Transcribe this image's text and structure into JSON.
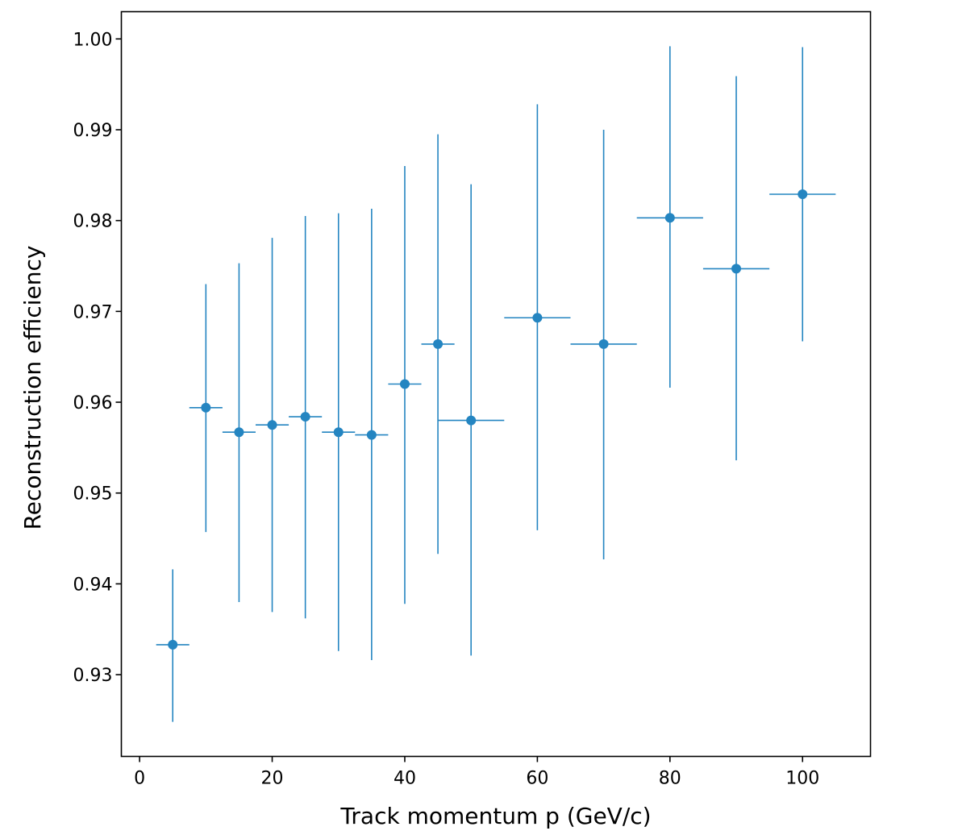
{
  "colors": {
    "series": "#2485c1",
    "axis": "#000000",
    "background": "#ffffff"
  },
  "chart_data": {
    "type": "scatter",
    "title": "",
    "xlabel": "Track momentum p (GeV/c)",
    "ylabel": "Reconstruction efficiency",
    "xlim": [
      -2.75,
      110.25
    ],
    "ylim": [
      0.921,
      1.003
    ],
    "xticks": [
      0,
      20,
      40,
      60,
      80,
      100
    ],
    "yticks": [
      0.93,
      0.94,
      0.95,
      0.96,
      0.97,
      0.98,
      0.99,
      1.0
    ],
    "xtick_labels": [
      "0",
      "20",
      "40",
      "60",
      "80",
      "100"
    ],
    "ytick_labels": [
      "0.93",
      "0.94",
      "0.95",
      "0.96",
      "0.97",
      "0.98",
      "0.99",
      "1.00"
    ],
    "grid": false,
    "legend": "none",
    "series": [
      {
        "points": [
          {
            "x": 5,
            "y": 0.9333,
            "xerr": 2.5,
            "ylow": 0.9248,
            "yhigh": 0.9416
          },
          {
            "x": 10,
            "y": 0.9594,
            "xerr": 2.5,
            "ylow": 0.9457,
            "yhigh": 0.973
          },
          {
            "x": 15,
            "y": 0.9567,
            "xerr": 2.5,
            "ylow": 0.938,
            "yhigh": 0.9753
          },
          {
            "x": 20,
            "y": 0.9575,
            "xerr": 2.5,
            "ylow": 0.9369,
            "yhigh": 0.9781
          },
          {
            "x": 25,
            "y": 0.9584,
            "xerr": 2.5,
            "ylow": 0.9362,
            "yhigh": 0.9805
          },
          {
            "x": 30,
            "y": 0.9567,
            "xerr": 2.5,
            "ylow": 0.9326,
            "yhigh": 0.9808
          },
          {
            "x": 35,
            "y": 0.9564,
            "xerr": 2.5,
            "ylow": 0.9316,
            "yhigh": 0.9813
          },
          {
            "x": 40,
            "y": 0.962,
            "xerr": 2.5,
            "ylow": 0.9378,
            "yhigh": 0.986
          },
          {
            "x": 45,
            "y": 0.9664,
            "xerr": 2.5,
            "ylow": 0.9433,
            "yhigh": 0.9895
          },
          {
            "x": 50,
            "y": 0.958,
            "xerr": 5.0,
            "ylow": 0.9321,
            "yhigh": 0.984
          },
          {
            "x": 60,
            "y": 0.9693,
            "xerr": 5.0,
            "ylow": 0.9459,
            "yhigh": 0.9928
          },
          {
            "x": 70,
            "y": 0.9664,
            "xerr": 5.0,
            "ylow": 0.9427,
            "yhigh": 0.99
          },
          {
            "x": 80,
            "y": 0.9803,
            "xerr": 5.0,
            "ylow": 0.9616,
            "yhigh": 0.9992
          },
          {
            "x": 90,
            "y": 0.9747,
            "xerr": 5.0,
            "ylow": 0.9536,
            "yhigh": 0.9959
          },
          {
            "x": 100,
            "y": 0.9829,
            "xerr": 5.0,
            "ylow": 0.9667,
            "yhigh": 0.9991
          }
        ]
      }
    ]
  }
}
